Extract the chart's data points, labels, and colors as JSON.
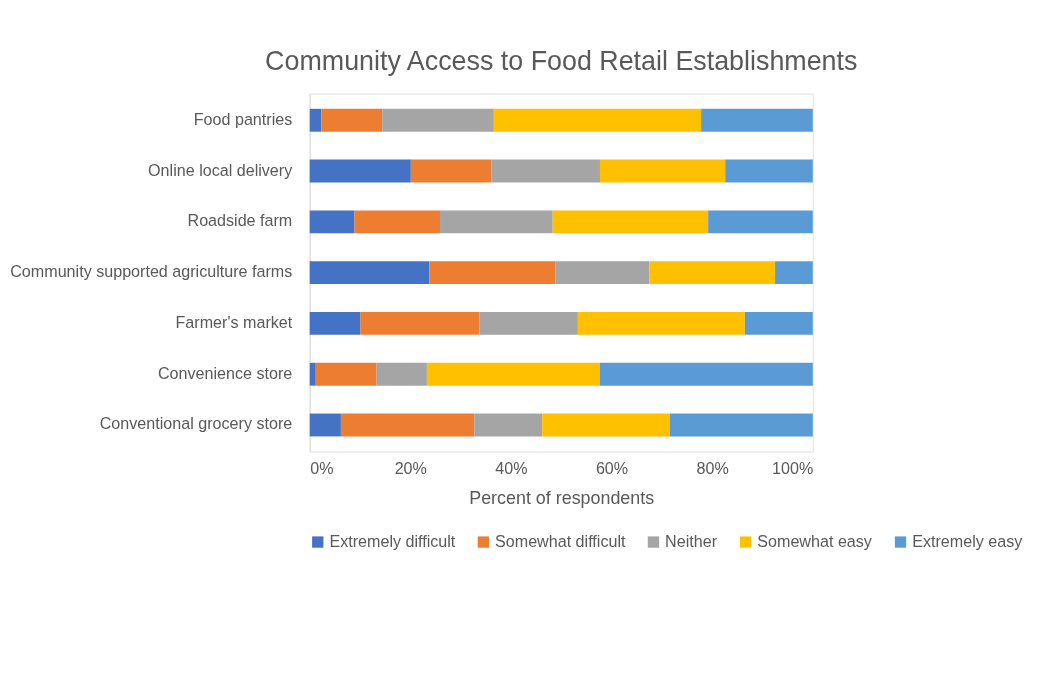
{
  "chart_data": {
    "type": "bar",
    "orientation": "horizontal",
    "stacked": true,
    "title": "Community Access to Food Retail Establishments",
    "xlabel": "Percent of respondents",
    "categories": [
      "Food pantries",
      "Online local delivery",
      "Roadside farm",
      "Community supported agriculture farms",
      "Farmer's market",
      "Convenience store",
      "Conventional grocery store"
    ],
    "series": [
      {
        "name": "Extremely difficult",
        "color": "#4472c4",
        "values": [
          2.3,
          20.1,
          8.9,
          23.8,
          10.1,
          1.2,
          6.2
        ]
      },
      {
        "name": "Somewhat difficult",
        "color": "#ed7d31",
        "values": [
          12.1,
          16.0,
          17.0,
          25.0,
          23.6,
          12.1,
          26.5
        ]
      },
      {
        "name": "Neither",
        "color": "#a5a5a5",
        "values": [
          22.2,
          21.6,
          22.4,
          18.7,
          19.6,
          10.0,
          13.5
        ]
      },
      {
        "name": "Somewhat easy",
        "color": "#ffc000",
        "values": [
          41.2,
          24.9,
          30.9,
          25.0,
          33.2,
          34.4,
          25.4
        ]
      },
      {
        "name": "Extremely easy",
        "color": "#5b9bd5",
        "values": [
          22.2,
          17.4,
          20.8,
          7.5,
          13.5,
          42.3,
          28.4
        ]
      }
    ],
    "xlim": [
      0,
      100
    ],
    "xticks": [
      {
        "value": 0,
        "label": "0%"
      },
      {
        "value": 20,
        "label": "20%"
      },
      {
        "value": 40,
        "label": "40%"
      },
      {
        "value": 60,
        "label": "60%"
      },
      {
        "value": 80,
        "label": "80%"
      },
      {
        "value": 100,
        "label": "100%"
      }
    ],
    "grid": false,
    "legend": "bottom"
  }
}
